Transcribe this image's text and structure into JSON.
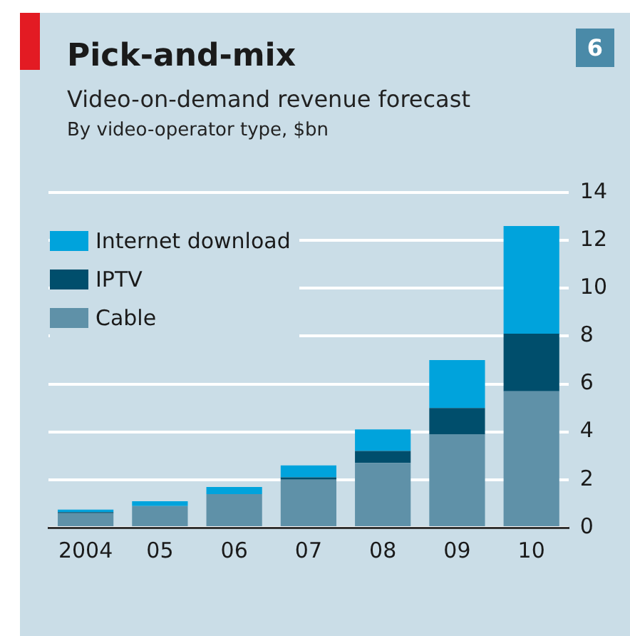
{
  "chart_data": {
    "type": "bar",
    "title": "Pick-and-mix",
    "subtitle": "Video-on-demand revenue forecast",
    "annotations": [
      "By video-operator type, $bn",
      "6"
    ],
    "categories": [
      "2004",
      "05",
      "06",
      "07",
      "08",
      "09",
      "10"
    ],
    "stacked": true,
    "series": [
      {
        "name": "Cable",
        "color": "#5f91a8",
        "values": [
          0.6,
          0.9,
          1.4,
          2.0,
          2.7,
          3.9,
          5.7
        ]
      },
      {
        "name": "IPTV",
        "color": "#004e6c",
        "values": [
          0.05,
          0,
          0,
          0.1,
          0.5,
          1.1,
          2.4
        ]
      },
      {
        "name": "Internet download",
        "color": "#00a3dc",
        "values": [
          0.1,
          0.2,
          0.3,
          0.5,
          0.9,
          2.0,
          4.5
        ]
      }
    ],
    "ylim": [
      0,
      14
    ],
    "yticks": [
      0,
      2,
      4,
      6,
      8,
      10,
      12,
      14
    ],
    "grid": "y",
    "legend": "top left"
  }
}
